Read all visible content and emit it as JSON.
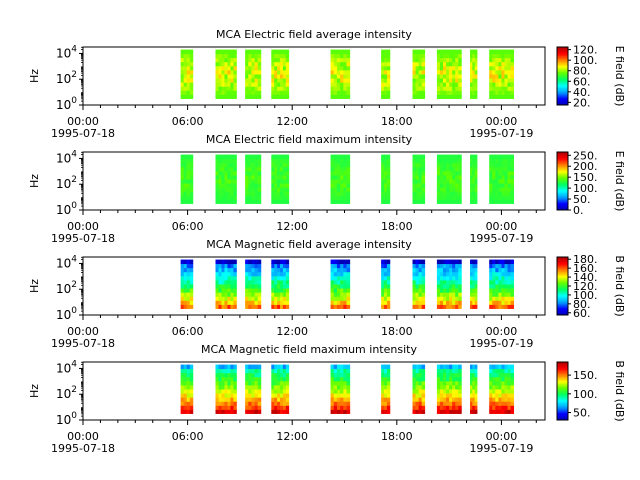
{
  "figure": {
    "x_tick_labels": [
      "00:00",
      "06:00",
      "12:00",
      "18:00",
      "00:00"
    ],
    "x_start_date": "1995-07-18",
    "x_end_date": "1995-07-19",
    "x_range_hours": [
      0,
      26.5
    ],
    "ylabel": "Hz",
    "y_tick_labels": [
      "10",
      "10",
      "10"
    ],
    "y_tick_exponents": [
      "0",
      "2",
      "4"
    ],
    "y_range_log10": [
      0,
      4.5
    ],
    "colormap_stops": [
      "#0000b0",
      "#0000ff",
      "#00a0ff",
      "#00ffff",
      "#00ff60",
      "#60ff00",
      "#ffff00",
      "#ff8000",
      "#ff0000",
      "#b00000"
    ]
  },
  "chart_data": [
    {
      "type": "heatmap",
      "title": "MCA  Electric field average intensity",
      "xlabel": "",
      "ylabel": "Hz",
      "colorbar_label": "E field (dB)",
      "colorbar_range": [
        15,
        125
      ],
      "colorbar_ticks": [
        "20.",
        "40.",
        "60.",
        "80.",
        "100.",
        "120."
      ],
      "colorbar_tick_values": [
        20,
        40,
        60,
        80,
        100,
        120
      ],
      "freq_range_log10": [
        0.5,
        4.3
      ],
      "data_intervals_hours": [
        [
          5.6,
          6.3
        ],
        [
          7.6,
          8.8
        ],
        [
          9.3,
          10.2
        ],
        [
          10.8,
          11.8
        ],
        [
          14.2,
          15.3
        ],
        [
          17.1,
          17.6
        ],
        [
          18.9,
          19.6
        ],
        [
          20.3,
          21.7
        ],
        [
          22.2,
          22.6
        ],
        [
          23.3,
          24.7
        ]
      ],
      "intensity_low": 50,
      "intensity_high": 95
    },
    {
      "type": "heatmap",
      "title": "MCA  Electric field maximum intensity",
      "xlabel": "",
      "ylabel": "Hz",
      "colorbar_label": "E field (dB)",
      "colorbar_range": [
        0,
        265
      ],
      "colorbar_ticks": [
        "0.",
        "50.",
        "100.",
        "150.",
        "200.",
        "250."
      ],
      "colorbar_tick_values": [
        0,
        50,
        100,
        150,
        200,
        250
      ],
      "freq_range_log10": [
        0.5,
        4.3
      ],
      "data_intervals_hours": [
        [
          5.6,
          6.3
        ],
        [
          7.6,
          8.8
        ],
        [
          9.3,
          10.2
        ],
        [
          10.8,
          11.8
        ],
        [
          14.2,
          15.3
        ],
        [
          17.1,
          17.6
        ],
        [
          18.9,
          19.6
        ],
        [
          20.3,
          21.7
        ],
        [
          22.2,
          22.6
        ],
        [
          23.3,
          24.7
        ]
      ],
      "intensity_low": 100,
      "intensity_high": 150
    },
    {
      "type": "heatmap",
      "title": "MCA  Magnetic field average intensity",
      "xlabel": "",
      "ylabel": "Hz",
      "colorbar_label": "B field (dB)",
      "colorbar_range": [
        55,
        185
      ],
      "colorbar_ticks": [
        "60.",
        "80.",
        "100.",
        "120.",
        "140.",
        "160.",
        "180."
      ],
      "colorbar_tick_values": [
        60,
        80,
        100,
        120,
        140,
        160,
        180
      ],
      "freq_range_log10": [
        0.5,
        4.3
      ],
      "data_intervals_hours": [
        [
          5.6,
          6.3
        ],
        [
          7.6,
          8.8
        ],
        [
          9.3,
          10.2
        ],
        [
          10.8,
          11.8
        ],
        [
          14.2,
          15.3
        ],
        [
          17.1,
          17.6
        ],
        [
          18.9,
          19.6
        ],
        [
          20.3,
          21.7
        ],
        [
          22.2,
          22.6
        ],
        [
          23.3,
          24.7
        ]
      ],
      "intensity_low": 75,
      "intensity_high": 160
    },
    {
      "type": "heatmap",
      "title": "MCA  Magnetic field maximum intensity",
      "xlabel": "",
      "ylabel": "Hz",
      "colorbar_label": "B field (dB)",
      "colorbar_range": [
        30,
        185
      ],
      "colorbar_ticks": [
        "50.",
        "100.",
        "150."
      ],
      "colorbar_tick_values": [
        50,
        100,
        150
      ],
      "freq_range_log10": [
        0.5,
        4.3
      ],
      "data_intervals_hours": [
        [
          5.6,
          6.3
        ],
        [
          7.6,
          8.8
        ],
        [
          9.3,
          10.2
        ],
        [
          10.8,
          11.8
        ],
        [
          14.2,
          15.3
        ],
        [
          17.1,
          17.6
        ],
        [
          18.9,
          19.6
        ],
        [
          20.3,
          21.7
        ],
        [
          22.2,
          22.6
        ],
        [
          23.3,
          24.7
        ]
      ],
      "intensity_low": 85,
      "intensity_high": 175
    }
  ]
}
